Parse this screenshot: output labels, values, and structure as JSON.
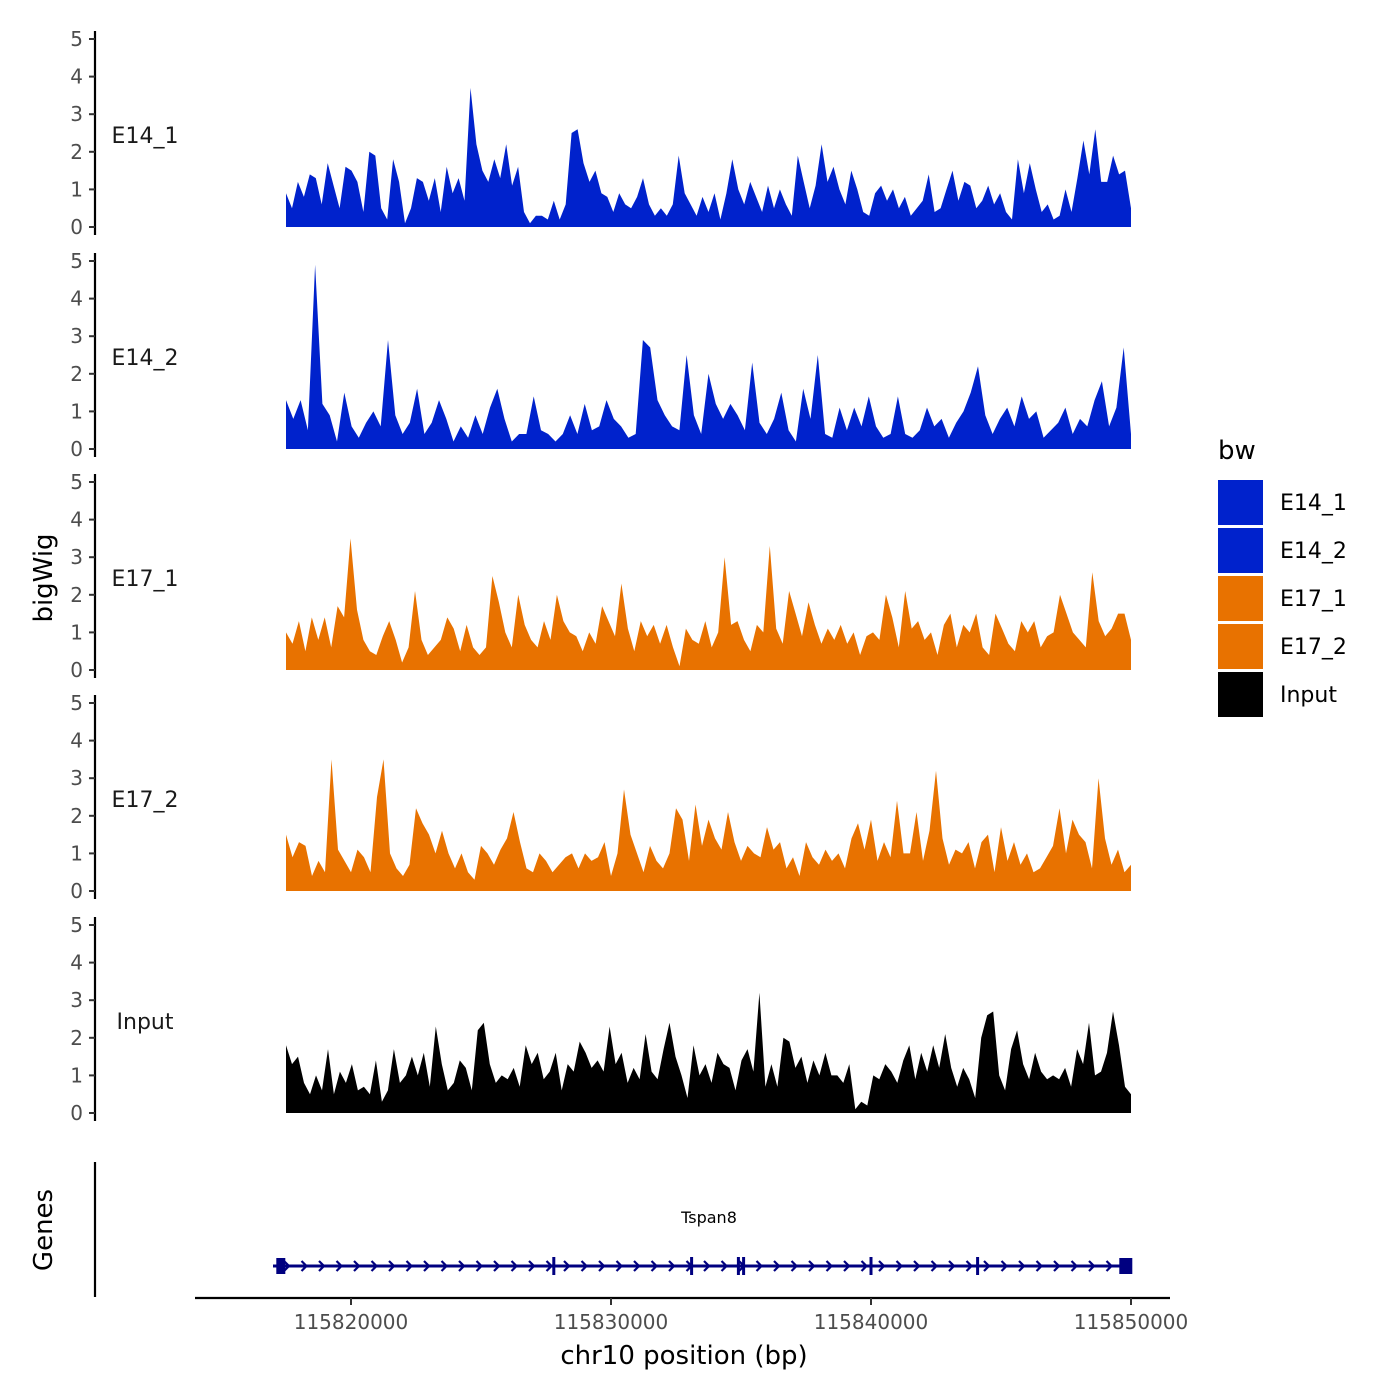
{
  "chart_data": {
    "type": "area",
    "chromosome": "chr10",
    "xlabel": "chr10 position (bp)",
    "ylabel": "bigWig",
    "xlim": [
      115814000,
      115851500
    ],
    "data_range": [
      115817500,
      115850000
    ],
    "x_ticks": [
      115820000,
      115830000,
      115840000,
      115850000
    ],
    "x_tick_labels": [
      "115820000",
      "115830000",
      "115840000",
      "115850000"
    ],
    "ylim": [
      0,
      5
    ],
    "y_ticks": [
      0,
      1,
      2,
      3,
      4,
      5
    ],
    "y_tick_labels": [
      "0",
      "1",
      "2",
      "3",
      "4",
      "5"
    ],
    "tracks": [
      {
        "name": "E14_1",
        "color": "#0022CC",
        "values": [
          0.9,
          0.5,
          1.2,
          0.8,
          1.4,
          1.3,
          0.6,
          1.7,
          1.1,
          0.5,
          1.6,
          1.5,
          1.2,
          0.4,
          2.0,
          1.9,
          0.5,
          0.2,
          1.8,
          1.2,
          0.1,
          0.5,
          1.3,
          1.2,
          0.7,
          1.3,
          0.4,
          1.6,
          0.9,
          1.3,
          0.7,
          3.7,
          2.2,
          1.5,
          1.2,
          1.8,
          1.3,
          2.2,
          1.1,
          1.6,
          0.4,
          0.1,
          0.3,
          0.3,
          0.2,
          0.7,
          0.2,
          0.6,
          2.5,
          2.6,
          1.7,
          1.2,
          1.5,
          0.9,
          0.8,
          0.4,
          0.9,
          0.6,
          0.5,
          0.8,
          1.3,
          0.6,
          0.3,
          0.5,
          0.3,
          0.6,
          1.9,
          0.9,
          0.6,
          0.3,
          0.8,
          0.4,
          0.9,
          0.2,
          0.9,
          1.8,
          1.0,
          0.6,
          1.2,
          0.8,
          0.4,
          1.1,
          0.5,
          1.0,
          0.6,
          0.3,
          1.9,
          1.2,
          0.5,
          1.1,
          2.2,
          1.2,
          1.6,
          1.0,
          0.6,
          1.5,
          1.0,
          0.4,
          0.3,
          0.9,
          1.1,
          0.7,
          1.0,
          0.5,
          0.8,
          0.3,
          0.5,
          0.7,
          1.4,
          0.4,
          0.5,
          1.0,
          1.5,
          0.7,
          1.2,
          1.1,
          0.5,
          0.7,
          1.1,
          0.6,
          0.9,
          0.4,
          0.2,
          1.8,
          0.9,
          1.7,
          1.0,
          0.4,
          0.6,
          0.2,
          0.3,
          1.0,
          0.4,
          1.3,
          2.3,
          1.4,
          2.6,
          1.2,
          1.2,
          1.9,
          1.4,
          1.5,
          0.5
        ],
        "label": "E14_1"
      },
      {
        "name": "E14_2",
        "color": "#0022CC",
        "values": [
          1.3,
          0.8,
          1.3,
          0.5,
          4.9,
          1.2,
          0.9,
          0.2,
          1.5,
          0.6,
          0.3,
          0.7,
          1.0,
          0.6,
          2.9,
          0.9,
          0.4,
          0.7,
          1.6,
          0.4,
          0.7,
          1.3,
          0.8,
          0.2,
          0.6,
          0.3,
          0.9,
          0.4,
          1.1,
          1.6,
          0.8,
          0.2,
          0.4,
          0.4,
          1.4,
          0.5,
          0.4,
          0.2,
          0.4,
          0.9,
          0.4,
          1.2,
          0.5,
          0.6,
          1.3,
          0.8,
          0.6,
          0.3,
          0.4,
          2.9,
          2.7,
          1.3,
          0.9,
          0.6,
          0.5,
          2.5,
          0.9,
          0.4,
          2.0,
          1.2,
          0.8,
          1.2,
          0.9,
          0.5,
          2.3,
          0.7,
          0.4,
          0.8,
          1.5,
          0.5,
          0.2,
          1.6,
          0.8,
          2.5,
          0.4,
          0.3,
          1.1,
          0.5,
          1.1,
          0.6,
          1.4,
          0.6,
          0.3,
          0.4,
          1.4,
          0.4,
          0.3,
          0.5,
          1.1,
          0.6,
          0.8,
          0.3,
          0.7,
          1.0,
          1.5,
          2.2,
          0.9,
          0.4,
          0.8,
          1.1,
          0.6,
          1.4,
          0.8,
          1.0,
          0.3,
          0.5,
          0.7,
          1.1,
          0.4,
          0.8,
          0.6,
          1.3,
          1.8,
          0.6,
          1.1,
          2.7,
          0.4
        ],
        "label": "E14_2"
      },
      {
        "name": "E17_1",
        "color": "#E87200",
        "values": [
          1.0,
          0.7,
          1.3,
          0.5,
          1.4,
          0.8,
          1.4,
          0.6,
          1.7,
          1.4,
          3.5,
          1.6,
          0.8,
          0.5,
          0.4,
          0.9,
          1.3,
          0.8,
          0.2,
          0.6,
          2.1,
          0.8,
          0.4,
          0.6,
          0.8,
          1.4,
          1.1,
          0.5,
          1.2,
          0.6,
          0.4,
          0.6,
          2.5,
          1.8,
          1.0,
          0.6,
          2.0,
          1.2,
          0.8,
          0.6,
          1.3,
          0.8,
          2.0,
          1.3,
          1.0,
          0.9,
          0.5,
          1.0,
          0.7,
          1.7,
          1.3,
          0.9,
          2.3,
          1.1,
          0.5,
          1.3,
          0.9,
          1.2,
          0.7,
          1.2,
          0.6,
          0.1,
          1.1,
          0.8,
          0.7,
          1.3,
          0.6,
          1.0,
          3.0,
          1.2,
          1.3,
          0.8,
          0.5,
          1.2,
          1.0,
          3.3,
          1.1,
          0.7,
          2.1,
          1.5,
          0.9,
          1.8,
          1.2,
          0.7,
          1.1,
          0.8,
          1.2,
          0.7,
          1.0,
          0.4,
          0.9,
          1.0,
          0.8,
          2.0,
          1.4,
          0.6,
          2.1,
          1.1,
          1.3,
          0.8,
          1.0,
          0.4,
          1.2,
          1.5,
          0.6,
          1.2,
          1.0,
          1.5,
          0.6,
          0.4,
          1.5,
          1.1,
          0.7,
          0.5,
          1.3,
          1.0,
          1.3,
          0.6,
          0.9,
          1.0,
          2.0,
          1.5,
          1.0,
          0.8,
          0.6,
          2.6,
          1.3,
          0.9,
          1.1,
          1.5,
          1.5,
          0.8
        ],
        "label": "E17_1"
      },
      {
        "name": "E17_2",
        "color": "#E87200",
        "values": [
          1.5,
          0.9,
          1.3,
          1.2,
          0.4,
          0.8,
          0.5,
          3.5,
          1.1,
          0.8,
          0.5,
          1.1,
          0.9,
          0.5,
          2.5,
          3.5,
          1.0,
          0.6,
          0.4,
          0.7,
          2.2,
          1.8,
          1.5,
          1.0,
          1.6,
          1.0,
          0.6,
          1.0,
          0.5,
          0.3,
          1.2,
          1.0,
          0.7,
          1.1,
          1.4,
          2.1,
          1.3,
          0.6,
          0.5,
          1.0,
          0.8,
          0.5,
          0.7,
          0.9,
          1.0,
          0.6,
          1.0,
          0.8,
          0.9,
          1.3,
          0.4,
          1.0,
          2.7,
          1.5,
          1.0,
          0.5,
          1.2,
          0.8,
          0.6,
          1.0,
          2.2,
          1.9,
          0.8,
          2.3,
          1.2,
          1.9,
          1.4,
          1.1,
          2.1,
          1.3,
          0.8,
          1.2,
          1.0,
          0.9,
          1.7,
          1.1,
          1.3,
          0.6,
          0.9,
          0.4,
          1.3,
          0.9,
          0.7,
          1.1,
          0.8,
          1.0,
          0.6,
          1.4,
          1.8,
          1.1,
          1.9,
          0.8,
          1.3,
          0.9,
          2.4,
          1.0,
          1.0,
          2.1,
          0.8,
          1.6,
          3.2,
          1.4,
          0.7,
          1.1,
          1.0,
          1.3,
          0.6,
          1.3,
          1.5,
          0.5,
          1.7,
          0.8,
          1.3,
          0.7,
          1.0,
          0.5,
          0.6,
          0.9,
          1.2,
          2.2,
          1.0,
          1.9,
          1.5,
          1.3,
          0.6,
          3.0,
          1.4,
          0.7,
          1.1,
          0.5,
          0.7
        ],
        "label": "E17_2"
      },
      {
        "name": "Input",
        "color": "#000000",
        "values": [
          1.8,
          1.3,
          1.5,
          0.8,
          0.5,
          1.0,
          0.6,
          1.7,
          0.5,
          1.1,
          0.8,
          1.3,
          0.6,
          0.7,
          0.5,
          1.4,
          0.3,
          0.6,
          1.7,
          0.8,
          1.0,
          1.5,
          1.0,
          1.6,
          0.7,
          2.3,
          1.3,
          0.6,
          0.8,
          1.4,
          1.2,
          0.6,
          2.2,
          2.4,
          1.3,
          0.8,
          1.0,
          0.9,
          1.2,
          0.7,
          1.8,
          1.3,
          1.6,
          0.9,
          1.1,
          1.6,
          0.6,
          1.3,
          1.1,
          1.9,
          1.6,
          1.2,
          1.4,
          1.1,
          2.3,
          1.3,
          1.6,
          0.8,
          1.2,
          0.9,
          2.1,
          1.1,
          0.9,
          1.7,
          2.4,
          1.5,
          1.0,
          0.4,
          1.8,
          1.0,
          1.3,
          0.8,
          1.6,
          1.3,
          1.2,
          0.6,
          1.4,
          1.7,
          1.1,
          3.2,
          0.7,
          1.3,
          0.7,
          2.0,
          1.9,
          1.2,
          1.5,
          0.8,
          1.4,
          1.0,
          1.6,
          1.0,
          1.0,
          0.8,
          1.3,
          0.1,
          0.3,
          0.2,
          1.0,
          0.9,
          1.3,
          1.1,
          0.8,
          1.4,
          1.8,
          0.9,
          1.6,
          1.1,
          1.8,
          1.2,
          2.1,
          1.2,
          0.7,
          1.2,
          0.9,
          0.4,
          2.0,
          2.6,
          2.7,
          1.0,
          0.6,
          1.7,
          2.2,
          1.3,
          0.9,
          1.6,
          1.1,
          0.9,
          1.0,
          0.9,
          1.2,
          0.7,
          1.7,
          1.3,
          2.4,
          1.0,
          1.1,
          1.6,
          2.7,
          1.8,
          0.7,
          0.5
        ],
        "label": "Input"
      }
    ],
    "legend": {
      "title": "bw",
      "position": "right",
      "entries": [
        {
          "label": "E14_1",
          "color": "#0022CC"
        },
        {
          "label": "E14_2",
          "color": "#0022CC"
        },
        {
          "label": "E17_1",
          "color": "#E87200"
        },
        {
          "label": "E17_2",
          "color": "#E87200"
        },
        {
          "label": "Input",
          "color": "#000000"
        }
      ]
    },
    "genes_panel": {
      "label": "Genes",
      "gene_name": "Tspan8",
      "gene_start": 115817000,
      "gene_end": 115850000,
      "strand": "+",
      "color": "#000080",
      "exons": [
        115817300,
        115827800,
        115833100,
        115834900,
        115835100,
        115840000,
        115844100,
        115849800
      ]
    }
  }
}
